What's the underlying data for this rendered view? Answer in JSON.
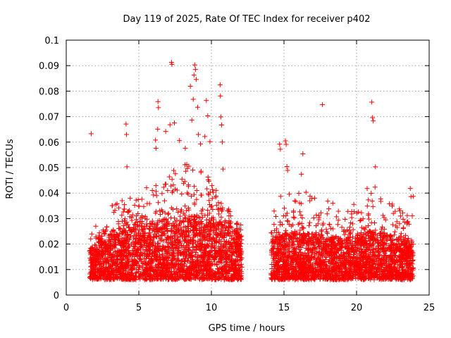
{
  "chart_data": {
    "type": "scatter",
    "title": "Day 119 of 2025, Rate Of TEC Index for receiver p402",
    "xlabel": "GPS time / hours",
    "ylabel": "ROTI / TECUs",
    "xlim": [
      0,
      25
    ],
    "ylim": [
      0,
      0.1
    ],
    "xticks": [
      0,
      5,
      10,
      15,
      20,
      25
    ],
    "xtick_labels": [
      "0",
      "5",
      "10",
      "15",
      "20",
      "25"
    ],
    "yticks": [
      0,
      0.01,
      0.02,
      0.03,
      0.04,
      0.05,
      0.06,
      0.07,
      0.08,
      0.09,
      0.1
    ],
    "ytick_labels": [
      "0",
      "0.01",
      "0.02",
      "0.03",
      "0.04",
      "0.05",
      "0.06",
      "0.07",
      "0.08",
      "0.09",
      "0.1"
    ],
    "grid": true,
    "marker": "+",
    "color": "#ff0000",
    "series": [
      {
        "points": [
          [
            1.72,
            0.0633
          ],
          [
            4.12,
            0.0671
          ],
          [
            4.15,
            0.063
          ],
          [
            4.18,
            0.0503
          ],
          [
            6.15,
            0.0608
          ],
          [
            6.18,
            0.0576
          ],
          [
            6.3,
            0.0651
          ],
          [
            6.32,
            0.0759
          ],
          [
            6.35,
            0.0735
          ],
          [
            6.85,
            0.0642
          ],
          [
            7.15,
            0.0668
          ],
          [
            7.25,
            0.0913
          ],
          [
            7.28,
            0.0905
          ],
          [
            7.45,
            0.0675
          ],
          [
            7.8,
            0.0606
          ],
          [
            8.2,
            0.0576
          ],
          [
            8.55,
            0.0819
          ],
          [
            8.65,
            0.0686
          ],
          [
            8.75,
            0.0768
          ],
          [
            8.8,
            0.0863
          ],
          [
            8.85,
            0.0903
          ],
          [
            8.9,
            0.0885
          ],
          [
            8.95,
            0.0846
          ],
          [
            9.05,
            0.0737
          ],
          [
            9.1,
            0.063
          ],
          [
            9.25,
            0.0593
          ],
          [
            9.55,
            0.0622
          ],
          [
            9.65,
            0.0763
          ],
          [
            9.75,
            0.0703
          ],
          [
            9.9,
            0.0602
          ],
          [
            10.6,
            0.0825
          ],
          [
            10.62,
            0.0781
          ],
          [
            10.65,
            0.0699
          ],
          [
            10.7,
            0.0667
          ],
          [
            10.75,
            0.06
          ],
          [
            10.8,
            0.0494
          ],
          [
            14.7,
            0.0592
          ],
          [
            14.75,
            0.0572
          ],
          [
            15.1,
            0.0605
          ],
          [
            15.15,
            0.0591
          ],
          [
            15.2,
            0.0504
          ],
          [
            15.25,
            0.0489
          ],
          [
            16.2,
            0.0474
          ],
          [
            16.3,
            0.0554
          ],
          [
            17.65,
            0.0747
          ],
          [
            21.05,
            0.0757
          ],
          [
            21.1,
            0.0696
          ],
          [
            21.15,
            0.0683
          ],
          [
            21.3,
            0.0503
          ],
          [
            23.7,
            0.0418
          ],
          [
            23.75,
            0.0386
          ],
          [
            23.9,
            0.0387
          ]
        ]
      }
    ],
    "density": {
      "segments": [
        [
          1.6,
          12.1
        ],
        [
          14.1,
          23.9
        ]
      ],
      "note_hidden": false,
      "profile": [
        [
          1.6,
          0.006,
          0.018,
          0.027
        ],
        [
          2.5,
          0.006,
          0.022,
          0.033
        ],
        [
          3.5,
          0.006,
          0.024,
          0.037
        ],
        [
          4.5,
          0.006,
          0.026,
          0.04
        ],
        [
          5.5,
          0.006,
          0.028,
          0.043
        ],
        [
          6.5,
          0.006,
          0.028,
          0.046
        ],
        [
          7.5,
          0.006,
          0.029,
          0.05
        ],
        [
          8.5,
          0.006,
          0.031,
          0.054
        ],
        [
          9.5,
          0.006,
          0.03,
          0.049
        ],
        [
          10.5,
          0.006,
          0.028,
          0.04
        ],
        [
          11.5,
          0.006,
          0.026,
          0.031
        ],
        [
          12.1,
          0.006,
          0.022,
          0.028
        ],
        [
          14.1,
          0.006,
          0.022,
          0.03
        ],
        [
          15.0,
          0.006,
          0.024,
          0.042
        ],
        [
          16.0,
          0.006,
          0.024,
          0.04
        ],
        [
          17.0,
          0.006,
          0.024,
          0.041
        ],
        [
          18.0,
          0.006,
          0.023,
          0.038
        ],
        [
          19.0,
          0.006,
          0.022,
          0.034
        ],
        [
          20.0,
          0.006,
          0.023,
          0.036
        ],
        [
          21.0,
          0.006,
          0.025,
          0.044
        ],
        [
          22.0,
          0.006,
          0.024,
          0.039
        ],
        [
          23.0,
          0.006,
          0.022,
          0.034
        ],
        [
          23.9,
          0.006,
          0.02,
          0.034
        ]
      ]
    }
  }
}
